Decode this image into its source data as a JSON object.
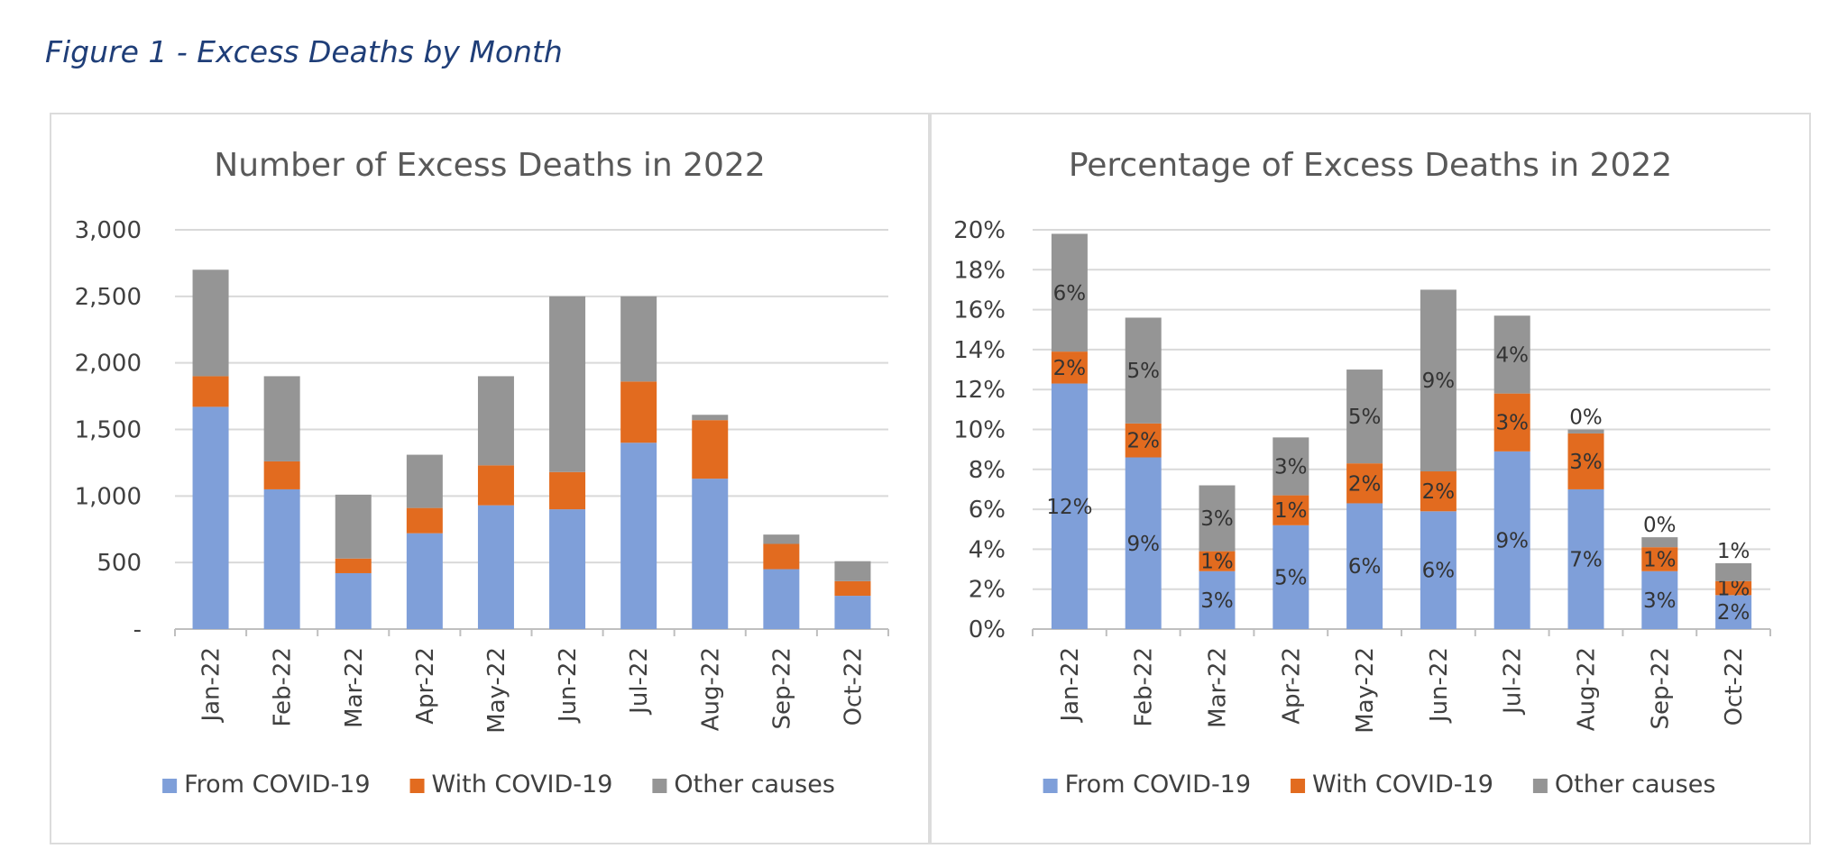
{
  "figure_caption": "Figure 1 - Excess Deaths by Month",
  "colors": {
    "From COVID-19": "#7f9fd9",
    "With COVID-19": "#e26b1f",
    "Other causes": "#959595",
    "grid": "#d9d9d9",
    "axis": "#bfbfbf"
  },
  "chart_data": [
    {
      "type": "bar",
      "stacked": true,
      "title": "Number of Excess Deaths in 2022",
      "categories": [
        "Jan-22",
        "Feb-22",
        "Mar-22",
        "Apr-22",
        "May-22",
        "Jun-22",
        "Jul-22",
        "Aug-22",
        "Sep-22",
        "Oct-22"
      ],
      "series": [
        {
          "name": "From COVID-19",
          "values": [
            1670,
            1050,
            420,
            720,
            930,
            900,
            1400,
            1130,
            450,
            250
          ]
        },
        {
          "name": "With COVID-19",
          "values": [
            230,
            210,
            110,
            190,
            300,
            280,
            460,
            440,
            190,
            110
          ]
        },
        {
          "name": "Other causes",
          "values": [
            800,
            640,
            480,
            400,
            670,
            1320,
            640,
            40,
            70,
            150
          ]
        }
      ],
      "ylim": [
        0,
        3000
      ],
      "yticks": [
        0,
        500,
        1000,
        1500,
        2000,
        2500,
        3000
      ],
      "ytick_labels": [
        "-",
        "500",
        "1,000",
        "1,500",
        "2,000",
        "2,500",
        "3,000"
      ],
      "legend": [
        "From COVID-19",
        "With COVID-19",
        "Other causes"
      ],
      "legend_position": "bottom",
      "grid": true
    },
    {
      "type": "bar",
      "stacked": true,
      "title": "Percentage of Excess Deaths in 2022",
      "categories": [
        "Jan-22",
        "Feb-22",
        "Mar-22",
        "Apr-22",
        "May-22",
        "Jun-22",
        "Jul-22",
        "Aug-22",
        "Sep-22",
        "Oct-22"
      ],
      "series": [
        {
          "name": "From COVID-19",
          "values": [
            12.3,
            8.6,
            2.9,
            5.2,
            6.3,
            5.9,
            8.9,
            7.0,
            2.9,
            1.7
          ],
          "labels": [
            "12%",
            "9%",
            "3%",
            "5%",
            "6%",
            "6%",
            "9%",
            "7%",
            "3%",
            "2%"
          ]
        },
        {
          "name": "With COVID-19",
          "values": [
            1.6,
            1.7,
            1.0,
            1.5,
            2.0,
            2.0,
            2.9,
            2.8,
            1.2,
            0.7
          ],
          "labels": [
            "2%",
            "2%",
            "1%",
            "1%",
            "2%",
            "2%",
            "3%",
            "3%",
            "1%",
            "1%"
          ]
        },
        {
          "name": "Other causes",
          "values": [
            5.9,
            5.3,
            3.3,
            2.9,
            4.7,
            9.1,
            3.9,
            0.2,
            0.5,
            0.9
          ],
          "labels": [
            "6%",
            "5%",
            "3%",
            "3%",
            "5%",
            "9%",
            "4%",
            "0%",
            "0%",
            "1%"
          ]
        }
      ],
      "ylim": [
        0,
        20
      ],
      "yticks": [
        0,
        2,
        4,
        6,
        8,
        10,
        12,
        14,
        16,
        18,
        20
      ],
      "ytick_labels": [
        "0%",
        "2%",
        "4%",
        "6%",
        "8%",
        "10%",
        "12%",
        "14%",
        "16%",
        "18%",
        "20%"
      ],
      "legend": [
        "From COVID-19",
        "With COVID-19",
        "Other causes"
      ],
      "legend_position": "bottom",
      "grid": true
    }
  ]
}
